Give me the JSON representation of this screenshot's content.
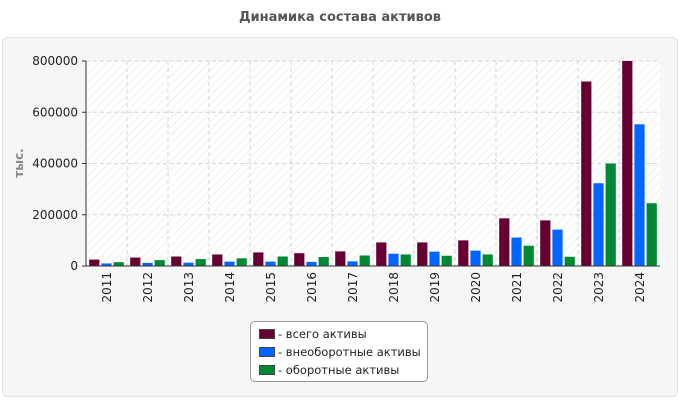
{
  "chart_data": {
    "type": "bar",
    "title": "Динамика состава активов",
    "ylabel": "тыс.",
    "xlabel": "",
    "ylim": [
      0,
      800000
    ],
    "yticks": [
      0,
      200000,
      400000,
      600000,
      800000
    ],
    "ytick_labels": [
      "0",
      "200000",
      "400000",
      "600000",
      "800000"
    ],
    "grid": true,
    "legend_position": "bottom",
    "categories": [
      "2011",
      "2012",
      "2013",
      "2014",
      "2015",
      "2016",
      "2017",
      "2018",
      "2019",
      "2020",
      "2021",
      "2022",
      "2023",
      "2024"
    ],
    "series": [
      {
        "name": "- всего активы",
        "color": "#660033",
        "values": [
          25000,
          33000,
          37000,
          45000,
          53000,
          50000,
          57000,
          92000,
          92000,
          100000,
          186000,
          178000,
          720000,
          800000
        ]
      },
      {
        "name": "- внеоборотные активы",
        "color": "#0066ff",
        "values": [
          10000,
          12000,
          13000,
          17000,
          17000,
          16000,
          18000,
          48000,
          56000,
          60000,
          111000,
          142000,
          323000,
          553000
        ]
      },
      {
        "name": "- оборотные активы",
        "color": "#008833",
        "values": [
          15000,
          23000,
          27000,
          30000,
          37000,
          35000,
          41000,
          45000,
          40000,
          45000,
          79000,
          36000,
          400000,
          245000
        ]
      }
    ]
  }
}
